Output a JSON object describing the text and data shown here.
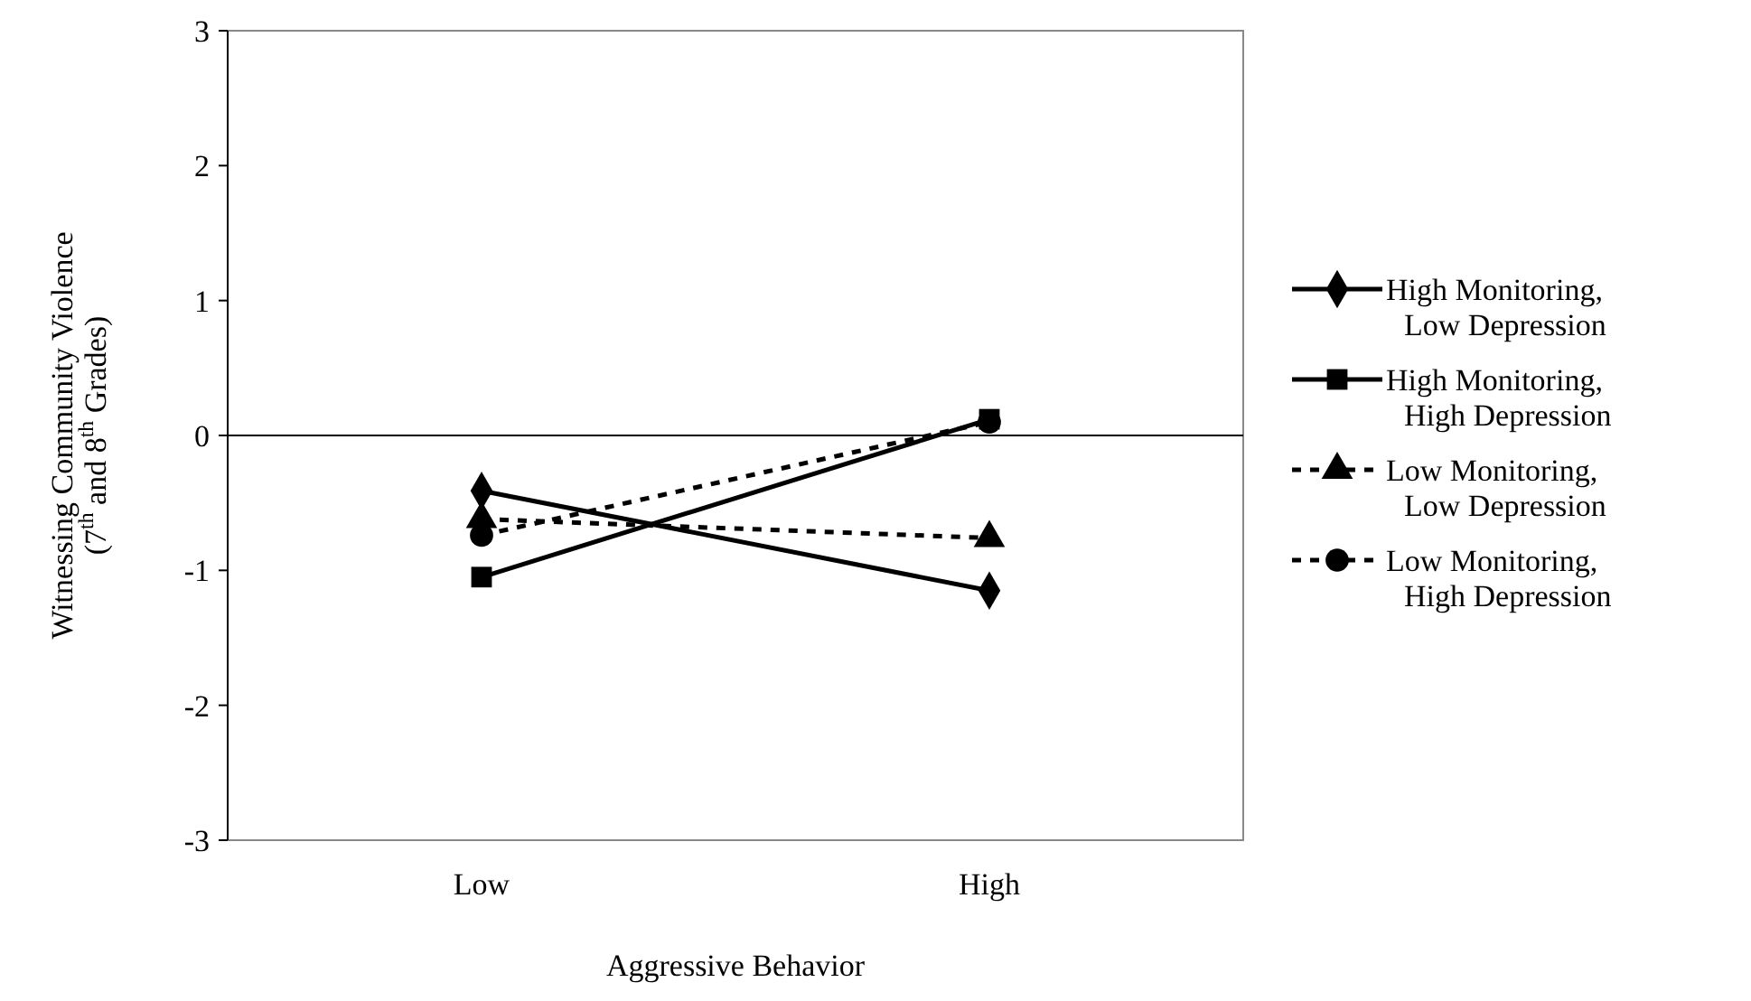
{
  "chart_data": {
    "type": "line",
    "xlabel": "Aggressive Behavior",
    "ylabel": "Witnessing Community Violence\n(7$^{th}$ and 8$^{th}$ Grades)",
    "categories": [
      "Low",
      "High"
    ],
    "ylim": [
      -3,
      3
    ],
    "yticks": [
      -3,
      -2,
      -1,
      0,
      1,
      2,
      3
    ],
    "ref_lines": [
      {
        "axis": "y",
        "value": 0
      }
    ],
    "legend": "right",
    "series": [
      {
        "name": "High Monitoring, Low Depression",
        "color": "#000000",
        "values": [
          -0.41,
          -1.15
        ],
        "marker": "diamond",
        "line_style": "solid"
      },
      {
        "name": "High Monitoring, High Depression",
        "color": "#000000",
        "values": [
          -1.05,
          0.12
        ],
        "marker": "square",
        "line_style": "solid"
      },
      {
        "name": "Low Monitoring, Low Depression",
        "color": "#000000",
        "values": [
          -0.62,
          -0.76
        ],
        "marker": "triangle",
        "line_style": "dashed"
      },
      {
        "name": "Low Monitoring, High Depression",
        "color": "#000000",
        "values": [
          -0.74,
          0.1
        ],
        "marker": "circle",
        "line_style": "dashed"
      }
    ]
  }
}
